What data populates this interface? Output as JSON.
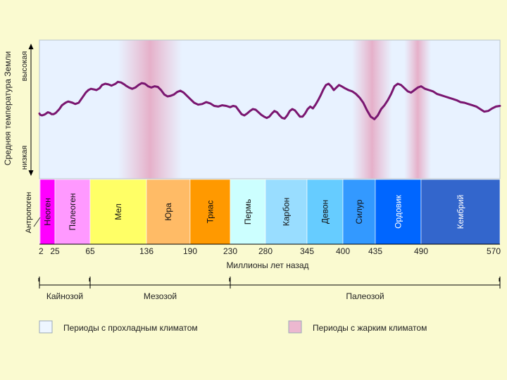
{
  "chart_data": {
    "type": "line",
    "title": "",
    "xlabel": "Миллионы лет назад",
    "ylabel": "Средняя температура Земли",
    "ylabel_high": "высокая",
    "ylabel_low": "низкая",
    "xlim": [
      0,
      570
    ],
    "boundaries": [
      0,
      2,
      25,
      65,
      136,
      190,
      230,
      280,
      345,
      400,
      435,
      490,
      570
    ],
    "tick_labels": [
      "2",
      "25",
      "65",
      "136",
      "190",
      "230",
      "280",
      "345",
      "400",
      "435",
      "490",
      "570"
    ],
    "periods": [
      {
        "name": "Антропоген",
        "start": 0,
        "end": 2,
        "color": "#ff00ff"
      },
      {
        "name": "Неоген",
        "start": 2,
        "end": 25,
        "color": "#ff00ff"
      },
      {
        "name": "Палеоген",
        "start": 25,
        "end": 65,
        "color": "#ff99ff"
      },
      {
        "name": "Мел",
        "start": 65,
        "end": 136,
        "color": "#ffff66"
      },
      {
        "name": "Юра",
        "start": 136,
        "end": 190,
        "color": "#ffbb66"
      },
      {
        "name": "Триас",
        "start": 190,
        "end": 230,
        "color": "#ff9900"
      },
      {
        "name": "Пермь",
        "start": 230,
        "end": 280,
        "color": "#ccffff"
      },
      {
        "name": "Карбон",
        "start": 280,
        "end": 345,
        "color": "#99ddff"
      },
      {
        "name": "Девон",
        "start": 345,
        "end": 400,
        "color": "#66ccff"
      },
      {
        "name": "Силур",
        "start": 400,
        "end": 435,
        "color": "#3399ff"
      },
      {
        "name": "Ордовик",
        "start": 435,
        "end": 490,
        "color": "#0066ff"
      },
      {
        "name": "Кембрий",
        "start": 490,
        "end": 570,
        "color": "#3366cc"
      }
    ],
    "eras": [
      {
        "name": "Кайнозой",
        "start": 0,
        "end": 65
      },
      {
        "name": "Мезозой",
        "start": 65,
        "end": 230
      },
      {
        "name": "Палеозой",
        "start": 230,
        "end": 570
      }
    ],
    "warm_intervals": [
      [
        100,
        180
      ],
      [
        410,
        455
      ],
      [
        470,
        500
      ]
    ],
    "temperature_curve": {
      "note": "relative temperature, 0 = низкая, 1 = высокая",
      "x": [
        0,
        2,
        5,
        8,
        10,
        14,
        17,
        20,
        23,
        26,
        30,
        33,
        37,
        40,
        45,
        48,
        52,
        56,
        60,
        63,
        66,
        70,
        73,
        77,
        80,
        84,
        88,
        92,
        97,
        100,
        104,
        108,
        110,
        114,
        118,
        122,
        126,
        130,
        134,
        138,
        142,
        146,
        150,
        154,
        158,
        162,
        166,
        170,
        174,
        178,
        182,
        186,
        190,
        194,
        198,
        202,
        206,
        210,
        214,
        218,
        222,
        226,
        230,
        234,
        238,
        242,
        246,
        250,
        254,
        258,
        262,
        266,
        270,
        274,
        278,
        282,
        286,
        290,
        294,
        298,
        302,
        306,
        310,
        314,
        318,
        322,
        326,
        330,
        334,
        338,
        342,
        346,
        350,
        354,
        358,
        362,
        366,
        370,
        374,
        378,
        382,
        386,
        390,
        394,
        398,
        402,
        406,
        410,
        414,
        418,
        422,
        426,
        430,
        434,
        438,
        442,
        446,
        450,
        454,
        458,
        462,
        466,
        470,
        474,
        478,
        482,
        486,
        490,
        494,
        498,
        502,
        506,
        510,
        514,
        518,
        522,
        526,
        530,
        534,
        538,
        542,
        546,
        550,
        554,
        558,
        562,
        566,
        570
      ],
      "y": [
        0.43,
        0.41,
        0.4,
        0.41,
        0.42,
        0.45,
        0.44,
        0.42,
        0.42,
        0.44,
        0.5,
        0.56,
        0.6,
        0.62,
        0.6,
        0.58,
        0.6,
        0.68,
        0.76,
        0.8,
        0.82,
        0.81,
        0.8,
        0.83,
        0.88,
        0.9,
        0.89,
        0.87,
        0.9,
        0.93,
        0.92,
        0.89,
        0.87,
        0.84,
        0.82,
        0.84,
        0.88,
        0.91,
        0.9,
        0.86,
        0.84,
        0.86,
        0.85,
        0.8,
        0.73,
        0.7,
        0.71,
        0.73,
        0.77,
        0.79,
        0.76,
        0.71,
        0.66,
        0.6,
        0.57,
        0.58,
        0.61,
        0.59,
        0.55,
        0.54,
        0.56,
        0.55,
        0.53,
        0.55,
        0.54,
        0.48,
        0.42,
        0.4,
        0.43,
        0.47,
        0.5,
        0.49,
        0.45,
        0.41,
        0.38,
        0.36,
        0.38,
        0.43,
        0.47,
        0.45,
        0.4,
        0.36,
        0.35,
        0.4,
        0.47,
        0.5,
        0.48,
        0.43,
        0.38,
        0.38,
        0.43,
        0.5,
        0.54,
        0.51,
        0.57,
        0.64,
        0.72,
        0.81,
        0.88,
        0.9,
        0.86,
        0.8,
        0.84,
        0.88,
        0.86,
        0.83,
        0.8,
        0.78,
        0.74,
        0.68,
        0.6,
        0.48,
        0.38,
        0.34,
        0.4,
        0.5,
        0.56,
        0.64,
        0.74,
        0.86,
        0.9,
        0.88,
        0.83,
        0.78,
        0.76,
        0.8,
        0.84,
        0.86,
        0.82,
        0.8,
        0.78,
        0.74,
        0.72,
        0.7,
        0.68,
        0.66,
        0.64,
        0.61,
        0.6,
        0.58,
        0.56,
        0.54,
        0.5,
        0.46,
        0.47,
        0.51,
        0.54,
        0.55
      ]
    },
    "legend": [
      {
        "label": "Периоды с прохладным климатом",
        "color": "#eef6ff"
      },
      {
        "label": "Периоды с жарким климатом",
        "color": "#ecb8d0"
      }
    ]
  }
}
